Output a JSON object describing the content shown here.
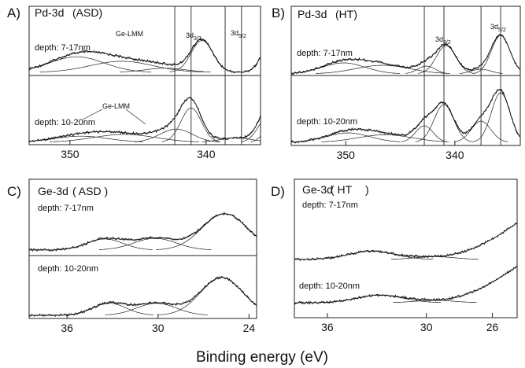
{
  "xlabel": "Binding energy (eV)",
  "chart_data": [
    {
      "panel": "A)",
      "title": "Pd-3d",
      "condition": "(ASD)",
      "type": "line",
      "x_reversed": true,
      "xlim": [
        353,
        336
      ],
      "xticks": [
        350,
        340
      ],
      "markers": [
        337.4,
        338.6,
        341.1,
        342.3
      ],
      "annotations": [
        "3d3/2",
        "3d5/2",
        "Ge-LMM"
      ],
      "subplots": [
        {
          "label": "depth: 7-17nm",
          "peaks": [
            {
              "center": 349.5,
              "height": 0.45,
              "width": 2.0
            },
            {
              "center": 346.2,
              "height": 0.32,
              "width": 2.3
            },
            {
              "center": 343.0,
              "height": 0.12,
              "width": 1.5
            },
            {
              "center": 340.3,
              "height": 0.92,
              "width": 0.8
            },
            {
              "center": 335.0,
              "height": 1.1,
              "width": 0.75
            }
          ]
        },
        {
          "label": "depth: 10-20nm",
          "peaks": [
            {
              "center": 349.2,
              "height": 0.14,
              "width": 2.0
            },
            {
              "center": 346.0,
              "height": 0.18,
              "width": 2.3
            },
            {
              "center": 342.2,
              "height": 0.3,
              "width": 1.2
            },
            {
              "center": 341.1,
              "height": 0.78,
              "width": 0.75
            },
            {
              "center": 337.8,
              "height": 0.1,
              "width": 1.2
            },
            {
              "center": 335.5,
              "height": 0.55,
              "width": 0.7
            },
            {
              "center": 334.7,
              "height": 0.8,
              "width": 0.7
            }
          ]
        }
      ]
    },
    {
      "panel": "B)",
      "title": "Pd-3d",
      "condition": "(HT)",
      "type": "line",
      "x_reversed": true,
      "xlim": [
        355,
        334
      ],
      "xticks": [
        350,
        340
      ],
      "markers": [
        342.8,
        341.0,
        337.6,
        335.8
      ],
      "annotations": [
        "3d3/2",
        "3d5/2"
      ],
      "subplots": [
        {
          "label": "depth: 7-17nm",
          "peaks": [
            {
              "center": 350.2,
              "height": 0.28,
              "width": 2.0
            },
            {
              "center": 346.6,
              "height": 0.22,
              "width": 2.5
            },
            {
              "center": 342.6,
              "height": 0.2,
              "width": 0.8
            },
            {
              "center": 340.8,
              "height": 0.72,
              "width": 0.9
            },
            {
              "center": 337.6,
              "height": 0.12,
              "width": 0.9
            },
            {
              "center": 335.8,
              "height": 0.98,
              "width": 0.85
            }
          ]
        },
        {
          "label": "depth: 10-20nm",
          "peaks": [
            {
              "center": 349.8,
              "height": 0.2,
              "width": 2.0
            },
            {
              "center": 346.4,
              "height": 0.16,
              "width": 2.5
            },
            {
              "center": 342.8,
              "height": 0.35,
              "width": 0.8
            },
            {
              "center": 341.0,
              "height": 0.8,
              "width": 0.9
            },
            {
              "center": 337.6,
              "height": 0.45,
              "width": 0.9
            },
            {
              "center": 335.8,
              "height": 1.05,
              "width": 0.85
            }
          ]
        }
      ]
    },
    {
      "panel": "C)",
      "title": "Ge-3d",
      "condition": "( ASD )",
      "type": "line",
      "x_reversed": true,
      "xlim": [
        38.5,
        23.5
      ],
      "xticks": [
        36,
        30,
        24
      ],
      "markers": [],
      "annotations": [],
      "subplots": [
        {
          "label": "depth: 7-17nm",
          "peaks": [
            {
              "center": 33.5,
              "height": 0.32,
              "width": 1.2
            },
            {
              "center": 30.2,
              "height": 0.34,
              "width": 1.4
            },
            {
              "center": 25.6,
              "height": 1.05,
              "width": 1.5
            }
          ]
        },
        {
          "label": "depth: 10-20nm",
          "peaks": [
            {
              "center": 33.2,
              "height": 0.32,
              "width": 1.1
            },
            {
              "center": 30.1,
              "height": 0.32,
              "width": 1.3
            },
            {
              "center": 25.8,
              "height": 1.0,
              "width": 1.4
            }
          ]
        }
      ]
    },
    {
      "panel": "D)",
      "title": "Ge-3d",
      "condition": "( HT",
      "condition_close": ")",
      "type": "line",
      "x_reversed": true,
      "xlim": [
        38,
        24.5
      ],
      "xticks": [
        36,
        30,
        26
      ],
      "markers": [],
      "annotations": [],
      "subplots": [
        {
          "label": "depth: 7-17nm",
          "peaks": [
            {
              "center": 33.3,
              "height": 0.35,
              "width": 1.4
            },
            {
              "center": 29.5,
              "height": 0.12,
              "width": 1.2
            }
          ],
          "rise": {
            "onset": 29.5,
            "height": 1.55
          }
        },
        {
          "label": "depth: 10-20nm",
          "peaks": [
            {
              "center": 32.8,
              "height": 0.32,
              "width": 1.4
            },
            {
              "center": 29.5,
              "height": 0.1,
              "width": 1.2
            }
          ],
          "rise": {
            "onset": 29.5,
            "height": 1.55
          }
        }
      ]
    }
  ]
}
